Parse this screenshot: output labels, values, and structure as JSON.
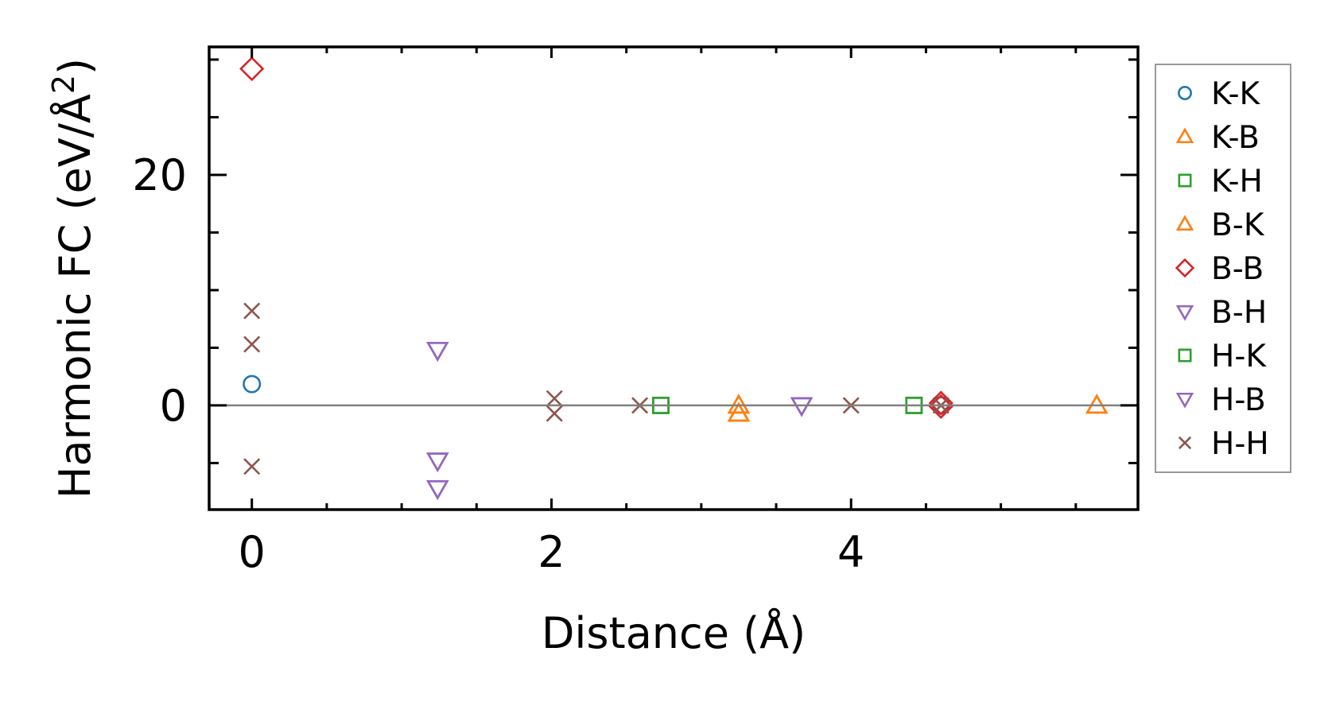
{
  "chart_data": {
    "type": "scatter",
    "title": "",
    "xlabel": "Distance (Å)",
    "ylabel": "Harmonic FC (eV/Å²)",
    "ylabel_base": "Harmonic FC (eV/Å",
    "ylabel_sup": "2",
    "ylabel_close": ")",
    "xlim": [
      -0.285,
      5.915
    ],
    "ylim": [
      -9.04,
      31.1
    ],
    "x_major_ticks": [
      0,
      2,
      4
    ],
    "x_tick_labels": [
      "0",
      "2",
      "4"
    ],
    "x_minor_step": 0.5,
    "y_major_ticks": [
      0,
      20
    ],
    "y_tick_labels": [
      "0",
      "20"
    ],
    "y_minor_step": 5,
    "zero_line": true,
    "grid": false,
    "legend_position": "outside-right",
    "series": [
      {
        "name": "K-K",
        "marker": "circle",
        "color": "#1f77b4",
        "points": [
          [
            0,
            1.85
          ],
          [
            4.6,
            0.0
          ]
        ]
      },
      {
        "name": "K-B",
        "marker": "triangle-up",
        "color": "#ff7f0e",
        "points": [
          [
            3.25,
            0.0
          ],
          [
            3.25,
            -0.7
          ],
          [
            5.64,
            0.0
          ]
        ]
      },
      {
        "name": "K-H",
        "marker": "square",
        "color": "#2ca02c",
        "points": [
          [
            2.73,
            0.0
          ],
          [
            4.42,
            0.0
          ]
        ]
      },
      {
        "name": "B-K",
        "marker": "triangle-up",
        "color": "#ff7f0e",
        "points": [
          [
            3.25,
            0.0
          ],
          [
            3.25,
            -0.7
          ],
          [
            5.64,
            0.0
          ]
        ]
      },
      {
        "name": "B-B",
        "marker": "diamond",
        "color": "#d62728",
        "points": [
          [
            0,
            29.2
          ],
          [
            4.6,
            0.2
          ],
          [
            4.6,
            -0.1
          ]
        ]
      },
      {
        "name": "B-H",
        "marker": "triangle-down",
        "color": "#9467bd",
        "points": [
          [
            1.24,
            4.8
          ],
          [
            1.24,
            -4.8
          ],
          [
            1.24,
            -7.2
          ],
          [
            3.67,
            0.0
          ]
        ]
      },
      {
        "name": "H-K",
        "marker": "square",
        "color": "#2ca02c",
        "points": [
          [
            2.73,
            0.0
          ],
          [
            4.42,
            0.0
          ]
        ]
      },
      {
        "name": "H-B",
        "marker": "triangle-down",
        "color": "#9467bd",
        "points": [
          [
            1.24,
            4.8
          ],
          [
            1.24,
            -4.8
          ],
          [
            1.24,
            -7.2
          ],
          [
            3.67,
            0.0
          ]
        ]
      },
      {
        "name": "H-H",
        "marker": "x",
        "color": "#8c564b",
        "points": [
          [
            0,
            8.2
          ],
          [
            0,
            5.3
          ],
          [
            0,
            -5.3
          ],
          [
            2.02,
            0.6
          ],
          [
            2.02,
            -0.7
          ],
          [
            2.59,
            0.0
          ],
          [
            4.0,
            0.0
          ],
          [
            4.6,
            0.0
          ]
        ]
      }
    ]
  }
}
